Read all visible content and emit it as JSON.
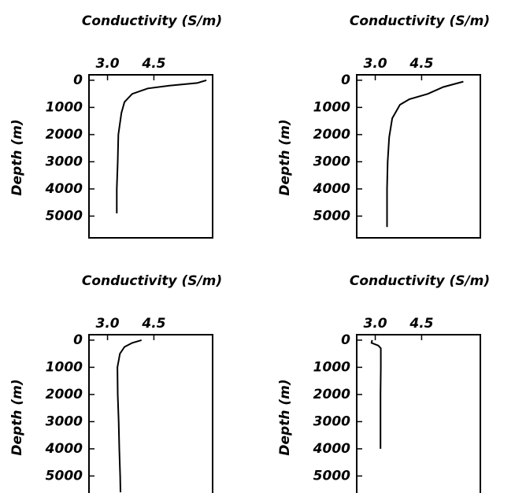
{
  "chart_data": [
    {
      "type": "line",
      "xlabel": "Conductivity (S/m)",
      "ylabel": "Depth (m)",
      "color": "#000000",
      "x": [
        6.2,
        5.9,
        5.0,
        4.3,
        3.8,
        3.55,
        3.45,
        3.35,
        3.33,
        3.3,
        3.3
      ],
      "values": [
        0,
        100,
        200,
        300,
        500,
        800,
        1200,
        2000,
        3000,
        4000,
        4900
      ],
      "xlim": [
        2.4,
        6.4
      ],
      "xticks": [
        {
          "value": 3,
          "label": "3.0"
        },
        {
          "value": 4.5,
          "label": "4.5"
        }
      ],
      "ylim": [
        5800,
        -200
      ],
      "yticks": [
        0,
        1000,
        2000,
        3000,
        4000,
        5000
      ]
    },
    {
      "type": "line",
      "xlabel": "Conductivity (S/m)",
      "ylabel": "Depth (m)",
      "color": "#000000",
      "x": [
        5.85,
        5.2,
        4.7,
        4.1,
        3.8,
        3.55,
        3.45,
        3.4,
        3.38,
        3.38
      ],
      "values": [
        50,
        250,
        500,
        700,
        900,
        1400,
        2100,
        3000,
        4000,
        5400
      ],
      "xlim": [
        2.4,
        6.4
      ],
      "xticks": [
        {
          "value": 3,
          "label": "3.0"
        },
        {
          "value": 4.5,
          "label": "4.5"
        }
      ],
      "ylim": [
        5800,
        -200
      ],
      "yticks": [
        0,
        1000,
        2000,
        3000,
        4000,
        5000
      ]
    },
    {
      "type": "line",
      "xlabel": "Conductivity (S/m)",
      "ylabel": "Depth (m)",
      "color": "#000000",
      "x": [
        4.1,
        3.8,
        3.55,
        3.4,
        3.32,
        3.33,
        3.36,
        3.38,
        3.41,
        3.42
      ],
      "values": [
        0,
        100,
        250,
        500,
        1000,
        2000,
        3000,
        4000,
        5000,
        5600
      ],
      "xlim": [
        2.4,
        6.4
      ],
      "xticks": [
        {
          "value": 3,
          "label": "3.0"
        },
        {
          "value": 4.5,
          "label": "4.5"
        }
      ],
      "ylim": [
        5800,
        -200
      ],
      "yticks": [
        0,
        1000,
        2000,
        3000,
        4000,
        5000
      ]
    },
    {
      "type": "line",
      "xlabel": "Conductivity (S/m)",
      "ylabel": "Depth (m)",
      "color": "#000000",
      "x": [
        2.9,
        2.88,
        3.1,
        3.18,
        3.18,
        3.17,
        3.17,
        3.17
      ],
      "values": [
        0,
        100,
        200,
        300,
        1000,
        2000,
        3000,
        4000
      ],
      "xlim": [
        2.4,
        6.4
      ],
      "xticks": [
        {
          "value": 3,
          "label": "3.0"
        },
        {
          "value": 4.5,
          "label": "4.5"
        }
      ],
      "ylim": [
        5800,
        -200
      ],
      "yticks": [
        0,
        1000,
        2000,
        3000,
        4000,
        5000
      ]
    }
  ]
}
